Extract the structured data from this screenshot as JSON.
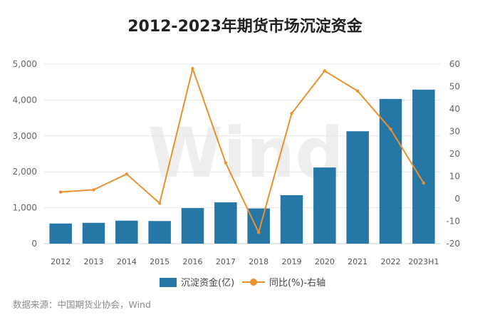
{
  "chart_data": {
    "type": "bar",
    "title": "2012-2023年期货市场沉淀资金",
    "categories": [
      "2012",
      "2013",
      "2014",
      "2015",
      "2016",
      "2017",
      "2018",
      "2019",
      "2020",
      "2021",
      "2022",
      "2023H1"
    ],
    "series": [
      {
        "name": "沉淀资金(亿)",
        "type": "bar",
        "axis": "left",
        "color": "#2677a6",
        "values": [
          560,
          580,
          640,
          630,
          990,
          1150,
          980,
          1350,
          2120,
          3130,
          4030,
          4290
        ]
      },
      {
        "name": "同比(%)-右轴",
        "type": "line",
        "axis": "right",
        "color": "#e8912d",
        "values": [
          3,
          4,
          11,
          -2,
          58,
          16,
          -15,
          38,
          57,
          48,
          31,
          7
        ]
      }
    ],
    "y_left": {
      "ticks": [
        "0",
        "1,000",
        "2,000",
        "3,000",
        "4,000",
        "5,000"
      ],
      "range": [
        0,
        5000
      ]
    },
    "y_right": {
      "ticks": [
        "-20",
        "-10",
        "0",
        "10",
        "20",
        "30",
        "40",
        "50",
        "60"
      ],
      "range": [
        -20,
        60
      ]
    },
    "grid": true,
    "legend_position": "bottom",
    "watermark": "Wind",
    "source": "数据来源：中国期货业协会，Wind"
  }
}
